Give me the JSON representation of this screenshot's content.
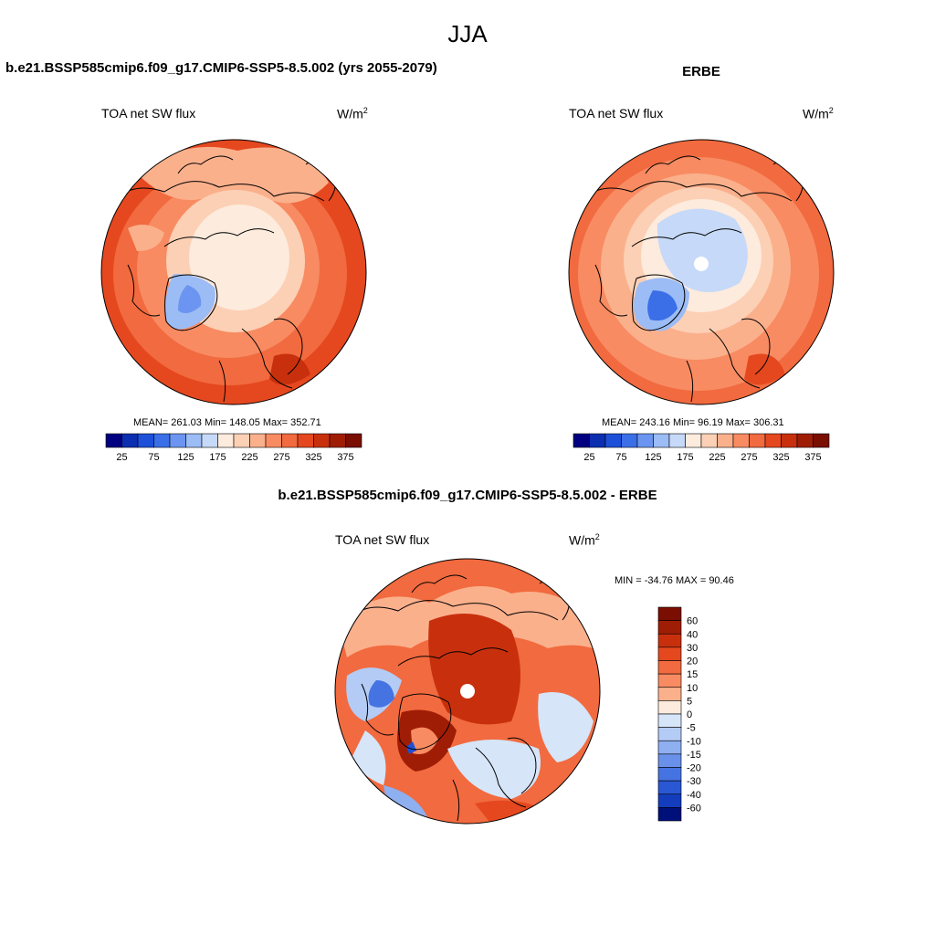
{
  "season": "JJA",
  "panels": {
    "model": {
      "title": "b.e21.BSSP585cmip6.f09_g17.CMIP6-SSP5-8.5.002 (yrs 2055-2079)",
      "left_label": "TOA net SW flux",
      "units": "W/m",
      "units_sup": "2",
      "stats": "MEAN= 261.03  Min= 148.05  Max= 352.71"
    },
    "obs": {
      "title": "ERBE",
      "left_label": "TOA net SW flux",
      "units": "W/m",
      "units_sup": "2",
      "stats": "MEAN= 243.16  Min=  96.19  Max= 306.31"
    },
    "diff": {
      "title": "b.e21.BSSP585cmip6.f09_g17.CMIP6-SSP5-8.5.002 - ERBE",
      "left_label": "TOA net SW flux",
      "units": "W/m",
      "units_sup": "2",
      "stats": "MIN = -34.76 MAX =  90.46"
    }
  },
  "colors": {
    "abs_scale": [
      "#000080",
      "#0b2fb0",
      "#1d4fd8",
      "#3b6fe8",
      "#6b95f0",
      "#9bbcf5",
      "#c6d9f8",
      "#fdebdd",
      "#fcd0b5",
      "#fbb08c",
      "#f88b62",
      "#f26a3f",
      "#e5481f",
      "#c8300d",
      "#a01d05",
      "#7a0e00"
    ],
    "diff_scale": [
      "#7a0e00",
      "#a01d05",
      "#c8300d",
      "#e5481f",
      "#f26a3f",
      "#f88b62",
      "#fbb08c",
      "#fdebdd",
      "#d6e5f8",
      "#b3cbf5",
      "#8eaff0",
      "#6a91ea",
      "#4574e2",
      "#2a57d4",
      "#133dbd",
      "#00107a"
    ]
  },
  "chart_data": [
    {
      "type": "heatmap",
      "projection": "north polar stereographic",
      "title": "b.e21.BSSP585cmip6.f09_g17.CMIP6-SSP5-8.5.002 (yrs 2055-2079)",
      "variable": "TOA net SW flux",
      "units": "W/m2",
      "colorbar_ticks": [
        "25",
        "75",
        "125",
        "175",
        "225",
        "275",
        "325",
        "375"
      ],
      "levels": [
        0,
        25,
        50,
        75,
        100,
        125,
        150,
        175,
        200,
        225,
        250,
        275,
        300,
        325,
        350,
        375
      ],
      "mean": 261.03,
      "min": 148.05,
      "max": 352.71
    },
    {
      "type": "heatmap",
      "projection": "north polar stereographic",
      "title": "ERBE",
      "variable": "TOA net SW flux",
      "units": "W/m2",
      "colorbar_ticks": [
        "25",
        "75",
        "125",
        "175",
        "225",
        "275",
        "325",
        "375"
      ],
      "levels": [
        0,
        25,
        50,
        75,
        100,
        125,
        150,
        175,
        200,
        225,
        250,
        275,
        300,
        325,
        350,
        375
      ],
      "mean": 243.16,
      "min": 96.19,
      "max": 306.31
    },
    {
      "type": "heatmap",
      "projection": "north polar stereographic",
      "title": "b.e21.BSSP585cmip6.f09_g17.CMIP6-SSP5-8.5.002 - ERBE",
      "variable": "TOA net SW flux",
      "units": "W/m2",
      "colorbar_ticks": [
        "60",
        "40",
        "30",
        "20",
        "15",
        "10",
        "5",
        "0",
        "-5",
        "-10",
        "-15",
        "-20",
        "-30",
        "-40",
        "-60"
      ],
      "min": -34.76,
      "max": 90.46
    }
  ]
}
